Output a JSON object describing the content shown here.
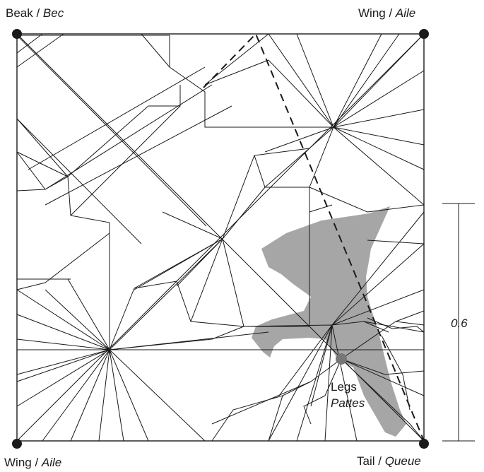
{
  "corners": {
    "top_left": {
      "name": "Beak",
      "translation": "Bec"
    },
    "top_right": {
      "name": "Wing",
      "translation": "Aile"
    },
    "bottom_left": {
      "name": "Wing",
      "translation": "Aile"
    },
    "bottom_right": {
      "name": "Tail",
      "translation": "Queue"
    }
  },
  "legs": {
    "name": "Legs",
    "translation": "Pattes"
  },
  "dimension": {
    "value": "0.6"
  },
  "colors": {
    "line": "#1a1a1a",
    "silhouette": "#a6a6a6",
    "leg_dot": "#777777",
    "corner_dot": "#1a1a1a"
  }
}
